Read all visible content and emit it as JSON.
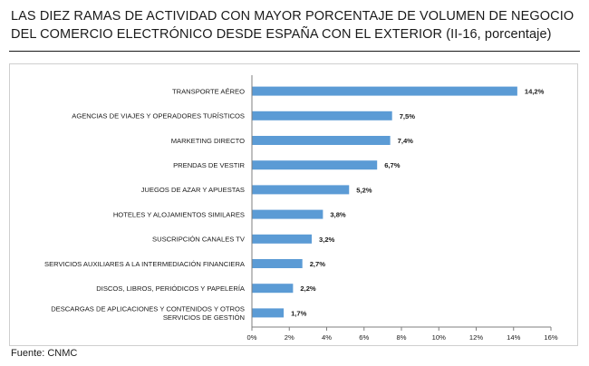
{
  "title": {
    "line1": "LAS DIEZ RAMAS DE ACTIVIDAD CON MAYOR PORCENTAJE DE VOLUMEN DE NEGOCIO",
    "line2": "DEL COMERCIO ELECTRÓNICO DESDE ESPAÑA CON EL EXTERIOR (II-16, porcentaje)"
  },
  "source": "Fuente: CNMC",
  "colors": {
    "bar": "#5b9bd5",
    "axis": "#7f7f7f"
  },
  "chart_data": {
    "type": "bar",
    "orientation": "horizontal",
    "categories": [
      [
        "TRANSPORTE AÉREO"
      ],
      [
        "AGENCIAS DE VIAJES Y OPERADORES TURÍSTICOS"
      ],
      [
        "MARKETING DIRECTO"
      ],
      [
        "PRENDAS DE VESTIR"
      ],
      [
        "JUEGOS DE AZAR Y APUESTAS"
      ],
      [
        "HOTELES  Y ALOJAMIENTOS SIMILARES"
      ],
      [
        "SUSCRIPCIÓN CANALES TV"
      ],
      [
        "SERVICIOS AUXILIARES A LA INTERMEDIACIÓN FINANCIERA"
      ],
      [
        "DISCOS, LIBROS, PERIÓDICOS Y PAPELERÍA"
      ],
      [
        "DESCARGAS DE APLICACIONES Y CONTENIDOS Y OTROS",
        "SERVICIOS DE GESTIÓN"
      ]
    ],
    "values": [
      14.2,
      7.5,
      7.4,
      6.7,
      5.2,
      3.8,
      3.2,
      2.7,
      2.2,
      1.7
    ],
    "data_labels": [
      "14,2%",
      "7,5%",
      "7,4%",
      "6,7%",
      "5,2%",
      "3,8%",
      "3,2%",
      "2,7%",
      "2,2%",
      "1,7%"
    ],
    "xlim": [
      0,
      16
    ],
    "xticks": [
      0,
      2,
      4,
      6,
      8,
      10,
      12,
      14,
      16
    ],
    "xtick_labels": [
      "0%",
      "2%",
      "4%",
      "6%",
      "8%",
      "10%",
      "12%",
      "14%",
      "16%"
    ],
    "grid": false,
    "legend": "none"
  }
}
